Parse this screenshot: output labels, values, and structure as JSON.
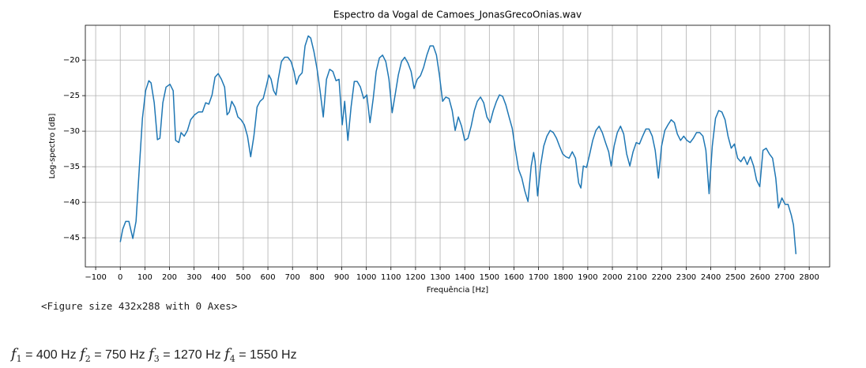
{
  "chart_data": {
    "type": "line",
    "title": "Espectro da Vogal de Camoes_JonasGrecoOnias.wav",
    "x_label": "Frequência [Hz]",
    "y_label": "Log-spectro [dB]",
    "x": [
      0,
      10,
      22,
      35,
      51,
      64,
      77,
      90,
      103,
      116,
      125,
      138,
      151,
      161,
      173,
      186,
      202,
      215,
      225,
      238,
      247,
      260,
      273,
      286,
      302,
      318,
      334,
      347,
      360,
      373,
      385,
      398,
      411,
      424,
      434,
      443,
      453,
      466,
      478,
      491,
      504,
      517,
      530,
      543,
      556,
      568,
      581,
      594,
      604,
      613,
      623,
      633,
      642,
      655,
      668,
      681,
      694,
      706,
      716,
      726,
      739,
      751,
      764,
      774,
      787,
      800,
      812,
      825,
      838,
      851,
      864,
      877,
      889,
      902,
      912,
      925,
      938,
      951,
      963,
      976,
      989,
      1002,
      1015,
      1028,
      1040,
      1053,
      1066,
      1079,
      1092,
      1105,
      1118,
      1130,
      1143,
      1156,
      1169,
      1182,
      1194,
      1207,
      1220,
      1233,
      1246,
      1259,
      1272,
      1285,
      1297,
      1310,
      1323,
      1336,
      1349,
      1361,
      1374,
      1387,
      1400,
      1413,
      1426,
      1439,
      1451,
      1464,
      1477,
      1490,
      1503,
      1516,
      1529,
      1541,
      1554,
      1567,
      1580,
      1593,
      1606,
      1619,
      1632,
      1644,
      1657,
      1670,
      1680,
      1686,
      1696,
      1708,
      1721,
      1734,
      1747,
      1760,
      1773,
      1785,
      1798,
      1811,
      1824,
      1837,
      1850,
      1863,
      1872,
      1882,
      1895,
      1908,
      1920,
      1933,
      1946,
      1959,
      1972,
      1985,
      1995,
      2007,
      2020,
      2033,
      2046,
      2058,
      2071,
      2084,
      2097,
      2110,
      2123,
      2136,
      2149,
      2162,
      2174,
      2187,
      2200,
      2213,
      2226,
      2239,
      2252,
      2264,
      2277,
      2290,
      2303,
      2316,
      2329,
      2342,
      2355,
      2368,
      2380,
      2393,
      2406,
      2419,
      2432,
      2445,
      2458,
      2470,
      2483,
      2496,
      2509,
      2522,
      2535,
      2548,
      2561,
      2574,
      2586,
      2599,
      2612,
      2625,
      2638,
      2651,
      2664,
      2675,
      2689,
      2702,
      2714,
      2727,
      2736,
      2746
    ],
    "series": [
      {
        "color": "#1f77b4",
        "values": [
          -45.6,
          -43.8,
          -42.7,
          -42.7,
          -45.1,
          -42.7,
          -35.4,
          -28.2,
          -24.3,
          -22.9,
          -23.2,
          -26,
          -31.2,
          -31,
          -26,
          -23.8,
          -23.4,
          -24.3,
          -31.3,
          -31.6,
          -30.2,
          -30.7,
          -29.9,
          -28.4,
          -27.7,
          -27.3,
          -27.3,
          -26,
          -26.2,
          -24.9,
          -22.4,
          -21.9,
          -22.7,
          -23.8,
          -27.7,
          -27.3,
          -25.8,
          -26.6,
          -28,
          -28.4,
          -29.1,
          -30.7,
          -33.6,
          -30.7,
          -26.6,
          -25.8,
          -25.4,
          -23.6,
          -22.1,
          -22.7,
          -24.3,
          -24.9,
          -22.7,
          -20.2,
          -19.6,
          -19.6,
          -20.2,
          -21.6,
          -23.4,
          -22.3,
          -21.8,
          -18,
          -16.6,
          -16.9,
          -18.8,
          -21.3,
          -24.3,
          -28,
          -22.7,
          -21.3,
          -21.6,
          -22.9,
          -22.7,
          -29.1,
          -25.8,
          -31.3,
          -26.6,
          -23,
          -23,
          -23.8,
          -25.4,
          -24.9,
          -28.8,
          -25.4,
          -21.6,
          -19.7,
          -19.3,
          -20.2,
          -22.7,
          -27.4,
          -24.7,
          -22.1,
          -20.2,
          -19.6,
          -20.4,
          -21.6,
          -24,
          -22.7,
          -22.2,
          -21,
          -19.3,
          -18,
          -18,
          -19.3,
          -22.1,
          -25.8,
          -25.2,
          -25.4,
          -27.1,
          -29.9,
          -28,
          -29.3,
          -31.3,
          -31,
          -29.3,
          -27.1,
          -25.8,
          -25.2,
          -26,
          -28,
          -28.8,
          -27.1,
          -25.8,
          -24.9,
          -25.1,
          -26.3,
          -28,
          -29.6,
          -32.7,
          -35.4,
          -36.6,
          -38.4,
          -39.9,
          -34.9,
          -33,
          -34.3,
          -39.1,
          -34.9,
          -32.1,
          -30.7,
          -29.9,
          -30.2,
          -31,
          -32.1,
          -33.2,
          -33.6,
          -33.8,
          -32.9,
          -33.8,
          -37.3,
          -38,
          -34.9,
          -35.1,
          -33.2,
          -31.3,
          -29.9,
          -29.3,
          -30.2,
          -31.6,
          -32.9,
          -34.9,
          -32.1,
          -30.2,
          -29.3,
          -30.4,
          -33.2,
          -34.9,
          -32.9,
          -31.6,
          -31.8,
          -30.7,
          -29.7,
          -29.7,
          -30.7,
          -32.7,
          -36.6,
          -32.1,
          -29.9,
          -29.1,
          -28.4,
          -28.8,
          -30.4,
          -31.3,
          -30.7,
          -31.3,
          -31.6,
          -31,
          -30.2,
          -30.2,
          -30.7,
          -32.7,
          -38.8,
          -32.1,
          -28.2,
          -27.1,
          -27.3,
          -28.4,
          -30.7,
          -32.4,
          -31.8,
          -33.8,
          -34.3,
          -33.6,
          -34.7,
          -33.6,
          -34.9,
          -36.9,
          -37.8,
          -32.7,
          -32.4,
          -33.2,
          -33.8,
          -36.6,
          -40.8,
          -39.4,
          -40.3,
          -40.3,
          -41.8,
          -43.2,
          -47.3
        ]
      }
    ],
    "xlim": [
      -142,
      2883
    ],
    "ylim": [
      -49.1,
      -15.1
    ],
    "xticks": [
      {
        "value": -100,
        "label": "−100"
      },
      0,
      100,
      200,
      300,
      400,
      500,
      600,
      700,
      800,
      900,
      1000,
      1100,
      1200,
      1300,
      1400,
      1500,
      1600,
      1700,
      1800,
      1900,
      2000,
      2100,
      2200,
      2300,
      2400,
      2500,
      2600,
      2700,
      2800
    ],
    "yticks": [
      {
        "value": -45,
        "label": "−45"
      },
      {
        "value": -40,
        "label": "−40"
      },
      {
        "value": -35,
        "label": "−35"
      },
      {
        "value": -30,
        "label": "−30"
      },
      {
        "value": -25,
        "label": "−25"
      },
      {
        "value": -20,
        "label": "−20"
      }
    ],
    "grid": true
  },
  "output_text": "<Figure size 432x288 with 0 Axes>",
  "formants": [
    {
      "symbol": "f",
      "index": "1",
      "text": "= 400 Hz"
    },
    {
      "symbol": "f",
      "index": "2",
      "text": "= 750 Hz"
    },
    {
      "symbol": "f",
      "index": "3",
      "text": "= 1270 Hz"
    },
    {
      "symbol": "f",
      "index": "4",
      "text": "= 1550 Hz"
    }
  ]
}
